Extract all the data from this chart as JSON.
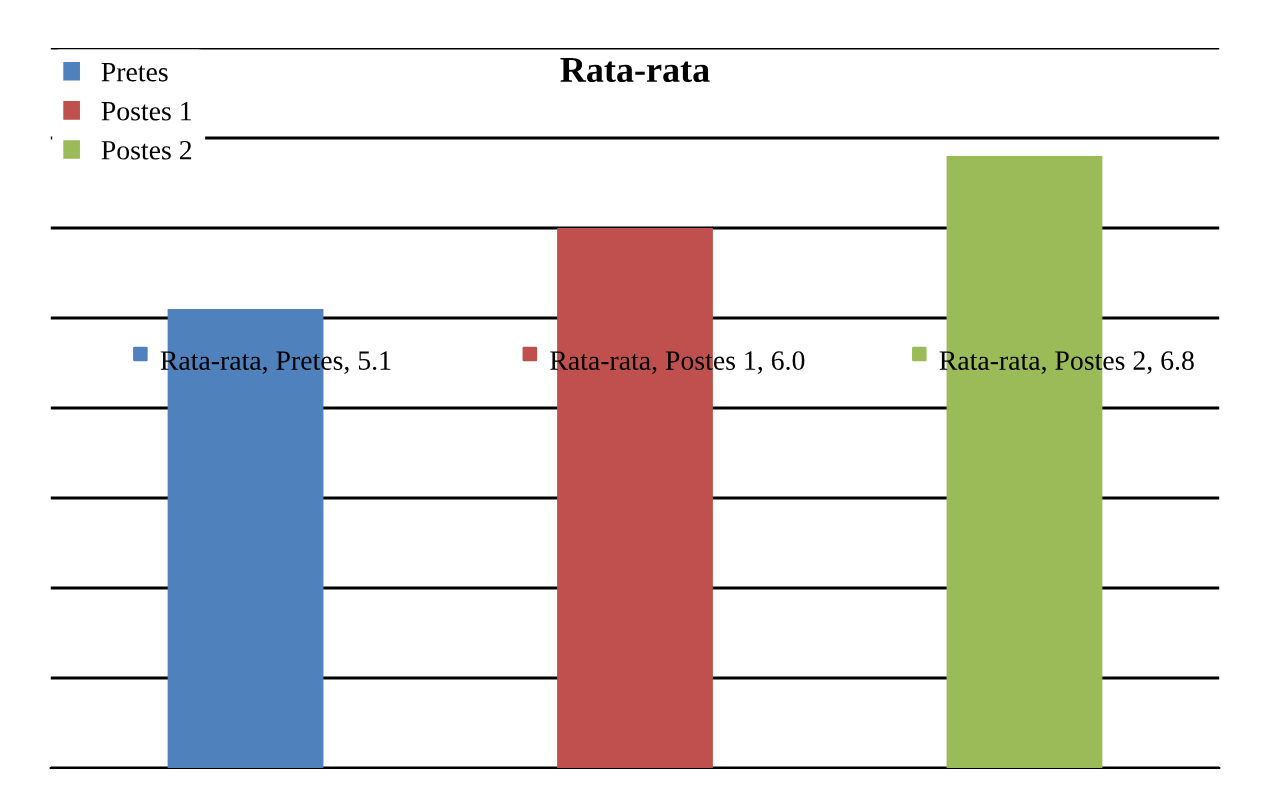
{
  "chart_data": {
    "type": "bar",
    "title": "Rata-rata",
    "stacked": true,
    "categories": [
      null,
      null,
      null
    ],
    "series": [
      {
        "name": "Pretes",
        "color": "#4f81bd",
        "values": [
          5.1,
          null,
          null
        ],
        "value_labels": [
          "Rata-rata, Pretes, 5.1",
          null,
          null
        ]
      },
      {
        "name": "Postes 1",
        "color": "#c0504d",
        "values": [
          null,
          6.0,
          null
        ],
        "value_labels": [
          null,
          "Rata-rata, Postes 1, 6.0",
          null
        ]
      },
      {
        "name": "Postes 2",
        "color": "#9bbb59",
        "values": [
          null,
          null,
          6.8
        ],
        "value_labels": [
          null,
          null,
          "Rata-rata, Postes 2, 6.8"
        ]
      }
    ],
    "ylim": [
      0,
      8
    ],
    "yticks": [
      {
        "value": 0,
        "label": null
      },
      {
        "value": 1,
        "label": null
      },
      {
        "value": 2,
        "label": null
      },
      {
        "value": 3,
        "label": null
      },
      {
        "value": 4,
        "label": null
      },
      {
        "value": 5,
        "label": null
      },
      {
        "value": 6,
        "label": null
      },
      {
        "value": 7,
        "label": null
      },
      {
        "value": 8,
        "label": null
      }
    ],
    "grid": "y",
    "legend": "top left"
  }
}
